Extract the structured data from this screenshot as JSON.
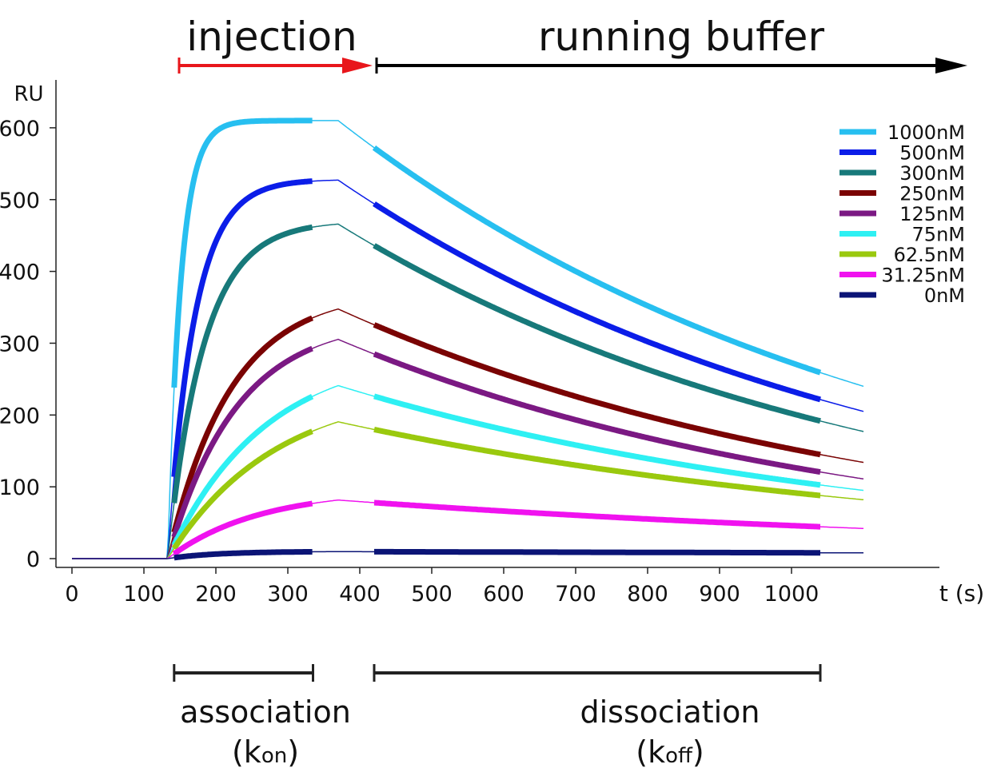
{
  "phases": {
    "injection_label": "injection",
    "running_buffer_label": "running buffer",
    "injection_color": "#e8161b",
    "buffer_color": "#000000"
  },
  "windows": {
    "association_label": "association",
    "association_symbol": "(k",
    "association_sub": "on",
    "dissociation_label": "dissociation",
    "dissociation_symbol": "(k",
    "dissociation_sub": "off",
    "close_paren": ")"
  },
  "chart_data": {
    "type": "line",
    "ylabel": "RU",
    "xlabel": "t (s)",
    "xlim": [
      -5,
      1100
    ],
    "ylim": [
      -10,
      620
    ],
    "x_ticks": [
      0,
      100,
      200,
      300,
      400,
      500,
      600,
      700,
      800,
      900,
      1000
    ],
    "y_ticks": [
      0,
      100,
      200,
      300,
      400,
      500,
      600
    ],
    "injection": {
      "start": 133,
      "end": 370
    },
    "association_window": [
      142,
      335
    ],
    "dissociation_window": [
      420,
      1040
    ],
    "legend_position": "top-right",
    "series": [
      {
        "name": "1000nM",
        "color": "#27bff0",
        "plateau": 610,
        "kon": 0.055,
        "end": 240
      },
      {
        "name": "500nM",
        "color": "#0b1de8",
        "plateau": 528,
        "kon": 0.027,
        "end": 205
      },
      {
        "name": "300nM",
        "color": "#17797a",
        "plateau": 470,
        "kon": 0.02,
        "end": 177
      },
      {
        "name": "250nM",
        "color": "#7a0303",
        "plateau": 372,
        "kon": 0.0115,
        "end": 134
      },
      {
        "name": "125nM",
        "color": "#7b1983",
        "plateau": 333,
        "kon": 0.0105,
        "end": 111
      },
      {
        "name": "75nM",
        "color": "#2ef0f3",
        "plateau": 290,
        "kon": 0.0075,
        "end": 95
      },
      {
        "name": "62.5nM",
        "color": "#9ac90e",
        "plateau": 238,
        "kon": 0.0068,
        "end": 82
      },
      {
        "name": "31.25nM",
        "color": "#f012ef",
        "plateau": 96,
        "kon": 0.008,
        "end": 42
      },
      {
        "name": "0nM",
        "color": "#0b1476",
        "plateau": 10,
        "kon": 0.015,
        "end": 8
      }
    ]
  }
}
